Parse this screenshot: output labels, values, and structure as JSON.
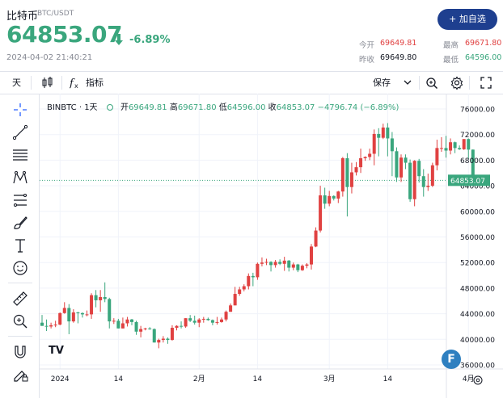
{
  "header": {
    "asset_name": "比特币",
    "pair": "BTC/USDT",
    "price": "64853.07",
    "change_pct": "-6.89%",
    "timestamp": "2024-04-02 21:40:21",
    "add_button": "+ 加自选",
    "stats": {
      "open_label": "今开",
      "open_value": "69649.81",
      "high_label": "最高",
      "high_value": "69671.80",
      "prev_close_label": "昨收",
      "prev_close_value": "69649.80",
      "low_label": "最低",
      "low_value": "64596.00"
    }
  },
  "toolbar": {
    "interval": "天",
    "indicators": "指标",
    "save": "保存"
  },
  "legend": {
    "symbol": "BINBTC · 1天",
    "open_label": "开",
    "open_value": "69649.81",
    "high_label": "高",
    "high_value": "69671.80",
    "low_label": "低",
    "low_value": "64596.00",
    "close_label": "收",
    "close_value": "64853.07",
    "change": "−4796.74 (−6.89%)"
  },
  "watermark": "TV",
  "badge_letter": "F",
  "colors": {
    "up": "#e04141",
    "down": "#3aa67d",
    "accent": "#1e3f8f"
  },
  "chart_data": {
    "type": "candlestick",
    "title": "BINBTC · 1天",
    "xlabel": "",
    "ylabel": "",
    "ylim": [
      35000,
      78000
    ],
    "y_ticks": [
      36000,
      40000,
      44000,
      48000,
      52000,
      56000,
      60000,
      64000,
      68000,
      72000,
      76000
    ],
    "y_tick_labels": [
      "36000.00",
      "40000.00",
      "44000.00",
      "48000.00",
      "52000.00",
      "56000.00",
      "60000.00",
      "64000.00",
      "68000.00",
      "72000.00",
      "76000.00"
    ],
    "x_tick_labels": [
      {
        "label": "2024",
        "date": "2024-01-01"
      },
      {
        "label": "14",
        "date": "2024-01-14"
      },
      {
        "label": "2月",
        "date": "2024-02-01"
      },
      {
        "label": "14",
        "date": "2024-02-14"
      },
      {
        "label": "3月",
        "date": "2024-03-01"
      },
      {
        "label": "14",
        "date": "2024-03-14"
      },
      {
        "label": "4月",
        "date": "2024-04-01"
      }
    ],
    "last_price": 64853.07,
    "last_price_label": "64853.07",
    "candles": [
      {
        "date": "2023-12-28",
        "o": 42600,
        "h": 43800,
        "l": 42100,
        "c": 42100
      },
      {
        "date": "2023-12-29",
        "o": 42100,
        "h": 43100,
        "l": 41300,
        "c": 42000
      },
      {
        "date": "2023-12-30",
        "o": 42000,
        "h": 42600,
        "l": 41700,
        "c": 42200
      },
      {
        "date": "2023-12-31",
        "o": 42200,
        "h": 42900,
        "l": 41900,
        "c": 42300
      },
      {
        "date": "2024-01-01",
        "o": 42300,
        "h": 44200,
        "l": 42200,
        "c": 44100
      },
      {
        "date": "2024-01-02",
        "o": 44100,
        "h": 45800,
        "l": 44000,
        "c": 44900
      },
      {
        "date": "2024-01-03",
        "o": 44900,
        "h": 45500,
        "l": 40800,
        "c": 42800
      },
      {
        "date": "2024-01-04",
        "o": 42800,
        "h": 44700,
        "l": 42600,
        "c": 44200
      },
      {
        "date": "2024-01-05",
        "o": 44200,
        "h": 44300,
        "l": 42500,
        "c": 44100
      },
      {
        "date": "2024-01-06",
        "o": 44100,
        "h": 44200,
        "l": 43400,
        "c": 43900
      },
      {
        "date": "2024-01-07",
        "o": 43900,
        "h": 44500,
        "l": 43600,
        "c": 43900
      },
      {
        "date": "2024-01-08",
        "o": 43900,
        "h": 47200,
        "l": 43200,
        "c": 46900
      },
      {
        "date": "2024-01-09",
        "o": 46900,
        "h": 47700,
        "l": 45000,
        "c": 46100
      },
      {
        "date": "2024-01-10",
        "o": 46100,
        "h": 47700,
        "l": 44300,
        "c": 46600
      },
      {
        "date": "2024-01-11",
        "o": 46600,
        "h": 48900,
        "l": 45800,
        "c": 46300
      },
      {
        "date": "2024-01-12",
        "o": 46300,
        "h": 46500,
        "l": 41700,
        "c": 42800
      },
      {
        "date": "2024-01-13",
        "o": 42800,
        "h": 43300,
        "l": 42400,
        "c": 42900
      },
      {
        "date": "2024-01-14",
        "o": 42900,
        "h": 43200,
        "l": 41700,
        "c": 41700
      },
      {
        "date": "2024-01-15",
        "o": 41700,
        "h": 43400,
        "l": 41700,
        "c": 42500
      },
      {
        "date": "2024-01-16",
        "o": 42500,
        "h": 43500,
        "l": 42000,
        "c": 43100
      },
      {
        "date": "2024-01-17",
        "o": 43100,
        "h": 43200,
        "l": 42200,
        "c": 42700
      },
      {
        "date": "2024-01-18",
        "o": 42700,
        "h": 42900,
        "l": 40700,
        "c": 41200
      },
      {
        "date": "2024-01-19",
        "o": 41200,
        "h": 42100,
        "l": 40300,
        "c": 41600
      },
      {
        "date": "2024-01-20",
        "o": 41600,
        "h": 41800,
        "l": 41400,
        "c": 41700
      },
      {
        "date": "2024-01-21",
        "o": 41700,
        "h": 41900,
        "l": 41500,
        "c": 41600
      },
      {
        "date": "2024-01-22",
        "o": 41600,
        "h": 41700,
        "l": 39500,
        "c": 39500
      },
      {
        "date": "2024-01-23",
        "o": 39500,
        "h": 40100,
        "l": 38600,
        "c": 39900
      },
      {
        "date": "2024-01-24",
        "o": 39900,
        "h": 40500,
        "l": 39500,
        "c": 40100
      },
      {
        "date": "2024-01-25",
        "o": 40100,
        "h": 40300,
        "l": 39300,
        "c": 39900
      },
      {
        "date": "2024-01-26",
        "o": 39900,
        "h": 42200,
        "l": 39800,
        "c": 41800
      },
      {
        "date": "2024-01-27",
        "o": 41800,
        "h": 42200,
        "l": 41400,
        "c": 42100
      },
      {
        "date": "2024-01-28",
        "o": 42100,
        "h": 42800,
        "l": 41700,
        "c": 42000
      },
      {
        "date": "2024-01-29",
        "o": 42000,
        "h": 43300,
        "l": 41800,
        "c": 43300
      },
      {
        "date": "2024-01-30",
        "o": 43300,
        "h": 43800,
        "l": 42700,
        "c": 42900
      },
      {
        "date": "2024-01-31",
        "o": 42900,
        "h": 43700,
        "l": 42300,
        "c": 42600
      },
      {
        "date": "2024-02-01",
        "o": 42600,
        "h": 43300,
        "l": 41900,
        "c": 43100
      },
      {
        "date": "2024-02-02",
        "o": 43100,
        "h": 43500,
        "l": 42600,
        "c": 43200
      },
      {
        "date": "2024-02-03",
        "o": 43200,
        "h": 43400,
        "l": 42900,
        "c": 43000
      },
      {
        "date": "2024-02-04",
        "o": 43000,
        "h": 43100,
        "l": 42200,
        "c": 42600
      },
      {
        "date": "2024-02-05",
        "o": 42600,
        "h": 43500,
        "l": 42300,
        "c": 42700
      },
      {
        "date": "2024-02-06",
        "o": 42700,
        "h": 43400,
        "l": 42600,
        "c": 43100
      },
      {
        "date": "2024-02-07",
        "o": 43100,
        "h": 44500,
        "l": 42800,
        "c": 44300
      },
      {
        "date": "2024-02-08",
        "o": 44300,
        "h": 45600,
        "l": 44300,
        "c": 45300
      },
      {
        "date": "2024-02-09",
        "o": 45300,
        "h": 48200,
        "l": 45300,
        "c": 47100
      },
      {
        "date": "2024-02-10",
        "o": 47100,
        "h": 48200,
        "l": 46800,
        "c": 47800
      },
      {
        "date": "2024-02-11",
        "o": 47800,
        "h": 48600,
        "l": 47500,
        "c": 48300
      },
      {
        "date": "2024-02-12",
        "o": 48300,
        "h": 50300,
        "l": 47800,
        "c": 49900
      },
      {
        "date": "2024-02-13",
        "o": 49900,
        "h": 50400,
        "l": 48300,
        "c": 49700
      },
      {
        "date": "2024-02-14",
        "o": 49700,
        "h": 52000,
        "l": 49300,
        "c": 51800
      },
      {
        "date": "2024-02-15",
        "o": 51800,
        "h": 52800,
        "l": 51400,
        "c": 52000
      },
      {
        "date": "2024-02-16",
        "o": 52000,
        "h": 52600,
        "l": 51600,
        "c": 52100
      },
      {
        "date": "2024-02-17",
        "o": 52100,
        "h": 52200,
        "l": 50600,
        "c": 51600
      },
      {
        "date": "2024-02-18",
        "o": 51600,
        "h": 52400,
        "l": 51200,
        "c": 52100
      },
      {
        "date": "2024-02-19",
        "o": 52100,
        "h": 52500,
        "l": 51600,
        "c": 51800
      },
      {
        "date": "2024-02-20",
        "o": 51800,
        "h": 52900,
        "l": 50700,
        "c": 52300
      },
      {
        "date": "2024-02-21",
        "o": 52300,
        "h": 52400,
        "l": 50600,
        "c": 51200
      },
      {
        "date": "2024-02-22",
        "o": 51200,
        "h": 52000,
        "l": 50800,
        "c": 51700
      },
      {
        "date": "2024-02-23",
        "o": 51700,
        "h": 51800,
        "l": 50500,
        "c": 50800
      },
      {
        "date": "2024-02-24",
        "o": 50800,
        "h": 51700,
        "l": 50700,
        "c": 51500
      },
      {
        "date": "2024-02-25",
        "o": 51500,
        "h": 51900,
        "l": 51100,
        "c": 51700
      },
      {
        "date": "2024-02-26",
        "o": 51700,
        "h": 54900,
        "l": 50900,
        "c": 54500
      },
      {
        "date": "2024-02-27",
        "o": 54500,
        "h": 57500,
        "l": 54400,
        "c": 57000
      },
      {
        "date": "2024-02-28",
        "o": 57000,
        "h": 64000,
        "l": 56700,
        "c": 62500
      },
      {
        "date": "2024-02-29",
        "o": 62500,
        "h": 63700,
        "l": 60400,
        "c": 61200
      },
      {
        "date": "2024-03-01",
        "o": 61200,
        "h": 63200,
        "l": 60800,
        "c": 62400
      },
      {
        "date": "2024-03-02",
        "o": 62400,
        "h": 62500,
        "l": 61700,
        "c": 62000
      },
      {
        "date": "2024-03-03",
        "o": 62000,
        "h": 63200,
        "l": 61300,
        "c": 63100
      },
      {
        "date": "2024-03-04",
        "o": 63100,
        "h": 68500,
        "l": 62300,
        "c": 68300
      },
      {
        "date": "2024-03-05",
        "o": 68300,
        "h": 69100,
        "l": 59200,
        "c": 63800
      },
      {
        "date": "2024-03-06",
        "o": 63800,
        "h": 67600,
        "l": 62800,
        "c": 66100
      },
      {
        "date": "2024-03-07",
        "o": 66100,
        "h": 67700,
        "l": 65600,
        "c": 66900
      },
      {
        "date": "2024-03-08",
        "o": 66900,
        "h": 69800,
        "l": 66000,
        "c": 68300
      },
      {
        "date": "2024-03-09",
        "o": 68300,
        "h": 68600,
        "l": 67900,
        "c": 68500
      },
      {
        "date": "2024-03-10",
        "o": 68500,
        "h": 69800,
        "l": 68000,
        "c": 69000
      },
      {
        "date": "2024-03-11",
        "o": 69000,
        "h": 72800,
        "l": 67200,
        "c": 72100
      },
      {
        "date": "2024-03-12",
        "o": 72100,
        "h": 73000,
        "l": 68600,
        "c": 71500
      },
      {
        "date": "2024-03-13",
        "o": 71500,
        "h": 73700,
        "l": 71300,
        "c": 73100
      },
      {
        "date": "2024-03-14",
        "o": 73100,
        "h": 73800,
        "l": 68600,
        "c": 71400
      },
      {
        "date": "2024-03-15",
        "o": 71400,
        "h": 72400,
        "l": 65500,
        "c": 69400
      },
      {
        "date": "2024-03-16",
        "o": 69400,
        "h": 70000,
        "l": 64600,
        "c": 65300
      },
      {
        "date": "2024-03-17",
        "o": 65300,
        "h": 68900,
        "l": 64600,
        "c": 68400
      },
      {
        "date": "2024-03-18",
        "o": 68400,
        "h": 68900,
        "l": 66600,
        "c": 67600
      },
      {
        "date": "2024-03-19",
        "o": 67600,
        "h": 68100,
        "l": 61500,
        "c": 61900
      },
      {
        "date": "2024-03-20",
        "o": 61900,
        "h": 68000,
        "l": 60800,
        "c": 67900
      },
      {
        "date": "2024-03-21",
        "o": 67900,
        "h": 68200,
        "l": 64500,
        "c": 65500
      },
      {
        "date": "2024-03-22",
        "o": 65500,
        "h": 66600,
        "l": 62300,
        "c": 63800
      },
      {
        "date": "2024-03-23",
        "o": 63800,
        "h": 65900,
        "l": 63200,
        "c": 64000
      },
      {
        "date": "2024-03-24",
        "o": 64000,
        "h": 67600,
        "l": 63800,
        "c": 67200
      },
      {
        "date": "2024-03-25",
        "o": 67200,
        "h": 71200,
        "l": 66400,
        "c": 69900
      },
      {
        "date": "2024-03-26",
        "o": 69900,
        "h": 71600,
        "l": 69300,
        "c": 69900
      },
      {
        "date": "2024-03-27",
        "o": 69900,
        "h": 71800,
        "l": 68400,
        "c": 69500
      },
      {
        "date": "2024-03-28",
        "o": 69500,
        "h": 71400,
        "l": 68900,
        "c": 70800
      },
      {
        "date": "2024-03-29",
        "o": 70800,
        "h": 70900,
        "l": 69100,
        "c": 69900
      },
      {
        "date": "2024-03-30",
        "o": 69900,
        "h": 70300,
        "l": 69600,
        "c": 69700
      },
      {
        "date": "2024-03-31",
        "o": 69700,
        "h": 71300,
        "l": 69600,
        "c": 71300
      },
      {
        "date": "2024-04-01",
        "o": 71300,
        "h": 71400,
        "l": 68100,
        "c": 69650
      },
      {
        "date": "2024-04-02",
        "o": 69649.81,
        "h": 69671.8,
        "l": 64596.0,
        "c": 64853.07
      }
    ]
  }
}
